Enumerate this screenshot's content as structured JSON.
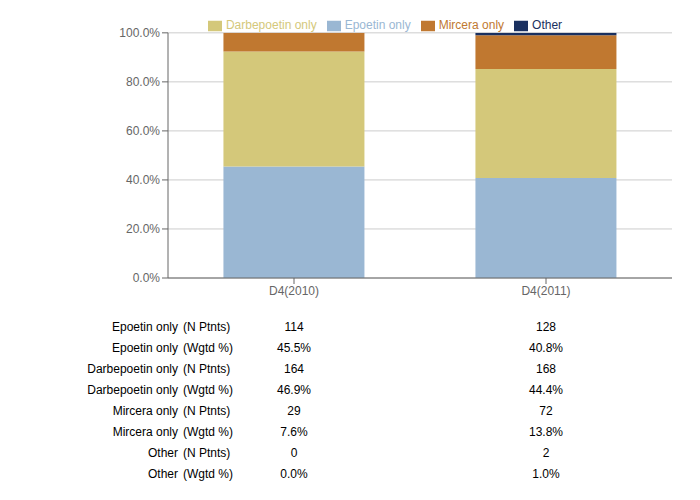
{
  "chart_data": {
    "type": "bar",
    "stacked": true,
    "grid": true,
    "legend": "top",
    "categories": [
      "D4(2010)",
      "D4(2011)"
    ],
    "series": [
      {
        "name": "Epoetin only",
        "values": [
          45.5,
          40.8
        ],
        "color": "#9ab7d3"
      },
      {
        "name": "Darbepoetin only",
        "values": [
          46.9,
          44.4
        ],
        "color": "#d4c87a"
      },
      {
        "name": "Mircera only",
        "values": [
          7.6,
          13.8
        ],
        "color": "#c07830"
      },
      {
        "name": "Other",
        "values": [
          0.0,
          1.0
        ],
        "color": "#1a3060"
      }
    ],
    "ylim": [
      0,
      100
    ],
    "yticks": [
      {
        "value": 0,
        "label": "0.0%"
      },
      {
        "value": 20,
        "label": "20.0%"
      },
      {
        "value": 40,
        "label": "40.0%"
      },
      {
        "value": 60,
        "label": "60.0%"
      },
      {
        "value": 80,
        "label": "80.0%"
      },
      {
        "value": 100,
        "label": "100.0%"
      }
    ],
    "table_rows": [
      {
        "label": "Epoetin only",
        "sub": "(N Ptnts)",
        "values": [
          "114",
          "128"
        ]
      },
      {
        "label": "Epoetin only",
        "sub": "(Wgtd %)",
        "values": [
          "45.5%",
          "40.8%"
        ]
      },
      {
        "label": "Darbepoetin only",
        "sub": "(N Ptnts)",
        "values": [
          "164",
          "168"
        ]
      },
      {
        "label": "Darbepoetin only",
        "sub": "(Wgtd %)",
        "values": [
          "46.9%",
          "44.4%"
        ]
      },
      {
        "label": "Mircera only",
        "sub": "(N Ptnts)",
        "values": [
          "29",
          "72"
        ]
      },
      {
        "label": "Mircera only",
        "sub": "(Wgtd %)",
        "values": [
          "7.6%",
          "13.8%"
        ]
      },
      {
        "label": "Other",
        "sub": "(N Ptnts)",
        "values": [
          "0",
          "2"
        ]
      },
      {
        "label": "Other",
        "sub": "(Wgtd %)",
        "values": [
          "0.0%",
          "1.0%"
        ]
      }
    ]
  }
}
